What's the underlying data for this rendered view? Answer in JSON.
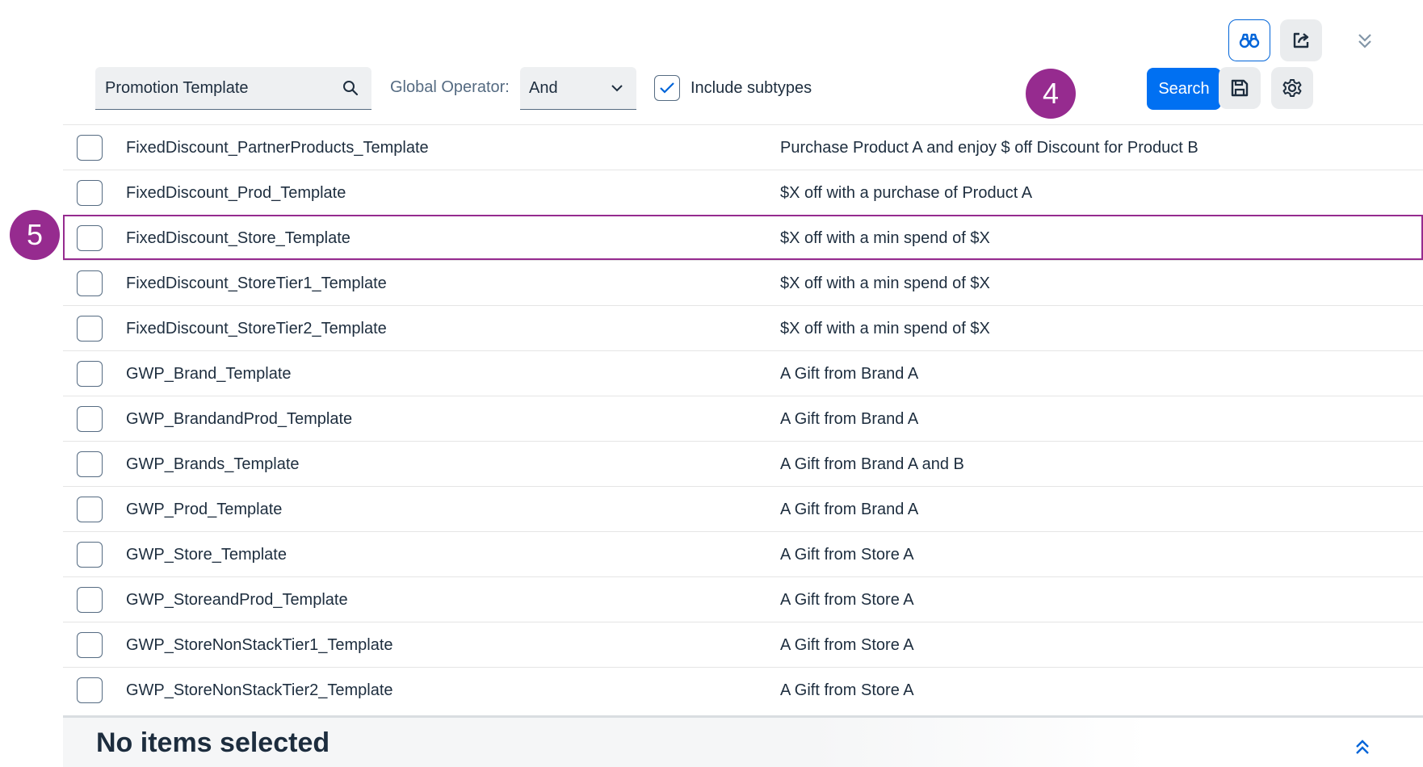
{
  "toolbar": {
    "icons": [
      "binoculars-icon",
      "share-export-icon",
      "chevron-double-down-icon",
      "save-icon",
      "gear-icon"
    ],
    "search_button_label": "Search"
  },
  "filter": {
    "search_value": "Promotion Template",
    "global_operator_label": "Global Operator:",
    "global_operator_value": "And",
    "include_subtypes_label": "Include subtypes",
    "include_subtypes_checked": true
  },
  "badges": {
    "search_step": "4",
    "row_step": "5"
  },
  "rows": [
    {
      "name": "FixedDiscount_PartnerProducts_Template",
      "description": "Purchase Product A and enjoy $ off Discount for Product B"
    },
    {
      "name": "FixedDiscount_Prod_Template",
      "description": "$X off with a purchase of Product A"
    },
    {
      "name": "FixedDiscount_Store_Template",
      "description": "$X off with a min spend of $X"
    },
    {
      "name": "FixedDiscount_StoreTier1_Template",
      "description": "$X off with a min spend of $X"
    },
    {
      "name": "FixedDiscount_StoreTier2_Template",
      "description": "$X off with a min spend of $X"
    },
    {
      "name": "GWP_Brand_Template",
      "description": "A Gift from Brand A"
    },
    {
      "name": "GWP_BrandandProd_Template",
      "description": "A Gift from Brand A"
    },
    {
      "name": "GWP_Brands_Template",
      "description": "A Gift from Brand A and B"
    },
    {
      "name": "GWP_Prod_Template",
      "description": "A Gift from Brand A"
    },
    {
      "name": "GWP_Store_Template",
      "description": "A Gift from Store A"
    },
    {
      "name": "GWP_StoreandProd_Template",
      "description": "A Gift from Store A"
    },
    {
      "name": "GWP_StoreNonStackTier1_Template",
      "description": "A Gift from Store A"
    },
    {
      "name": "GWP_StoreNonStackTier2_Template",
      "description": "A Gift from Store A"
    }
  ],
  "footer": {
    "selection_status": "No items selected"
  },
  "colors": {
    "accent": "#0070f2",
    "highlight": "#962b8f",
    "text": "#1d2d3e"
  }
}
